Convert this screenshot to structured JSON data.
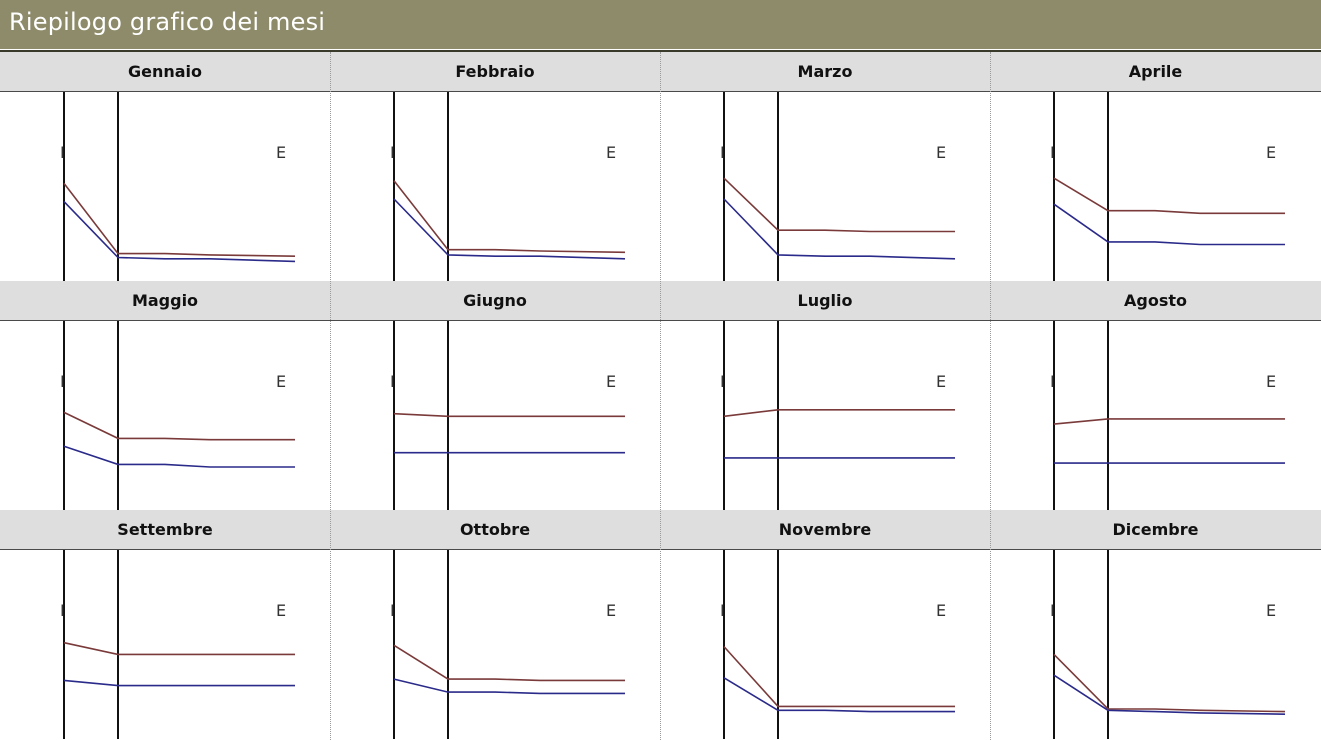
{
  "header": {
    "title": "Riepilogo grafico dei mesi"
  },
  "colors": {
    "header_bg": "#8e8b6a",
    "series_I": "#7a3a3a",
    "series_E": "#2a2a8a"
  },
  "axis_labels": {
    "left": "I",
    "right": "E"
  },
  "months": [
    "Gennaio",
    "Febbraio",
    "Marzo",
    "Aprile",
    "Maggio",
    "Giugno",
    "Luglio",
    "Agosto",
    "Settembre",
    "Ottobre",
    "Novembre",
    "Dicembre"
  ],
  "chart_data": [
    {
      "type": "line",
      "title": "Gennaio",
      "x": [
        0,
        1,
        2,
        3,
        4
      ],
      "series": [
        {
          "values": [
            62,
            8,
            8,
            7,
            6
          ]
        },
        {
          "values": [
            48,
            5,
            4,
            4,
            2
          ]
        }
      ]
    },
    {
      "type": "line",
      "title": "Febbraio",
      "x": [
        0,
        1,
        2,
        3,
        4
      ],
      "series": [
        {
          "values": [
            64,
            11,
            11,
            10,
            9
          ]
        },
        {
          "values": [
            50,
            7,
            6,
            6,
            4
          ]
        }
      ]
    },
    {
      "type": "line",
      "title": "Marzo",
      "x": [
        0,
        1,
        2,
        3,
        4
      ],
      "series": [
        {
          "values": [
            66,
            26,
            26,
            25,
            25
          ]
        },
        {
          "values": [
            50,
            7,
            6,
            6,
            4
          ]
        }
      ]
    },
    {
      "type": "line",
      "title": "Aprile",
      "x": [
        0,
        1,
        2,
        3,
        4
      ],
      "series": [
        {
          "values": [
            66,
            41,
            41,
            39,
            39
          ]
        },
        {
          "values": [
            46,
            17,
            17,
            15,
            15
          ]
        }
      ]
    },
    {
      "type": "line",
      "title": "Maggio",
      "x": [
        0,
        1,
        2,
        3,
        4
      ],
      "series": [
        {
          "values": [
            62,
            42,
            42,
            41,
            41
          ]
        },
        {
          "values": [
            36,
            22,
            22,
            20,
            20
          ]
        }
      ]
    },
    {
      "type": "line",
      "title": "Giugno",
      "x": [
        0,
        1,
        2,
        3,
        4
      ],
      "series": [
        {
          "values": [
            61,
            59,
            59,
            59,
            59
          ]
        },
        {
          "values": [
            31,
            31,
            31,
            31,
            31
          ]
        }
      ]
    },
    {
      "type": "line",
      "title": "Luglio",
      "x": [
        0,
        1,
        2,
        3,
        4
      ],
      "series": [
        {
          "values": [
            59,
            64,
            64,
            64,
            64
          ]
        },
        {
          "values": [
            27,
            27,
            27,
            27,
            27
          ]
        }
      ]
    },
    {
      "type": "line",
      "title": "Agosto",
      "x": [
        0,
        1,
        2,
        3,
        4
      ],
      "series": [
        {
          "values": [
            53,
            57,
            57,
            57,
            57
          ]
        },
        {
          "values": [
            23,
            23,
            23,
            23,
            23
          ]
        }
      ]
    },
    {
      "type": "line",
      "title": "Settembre",
      "x": [
        0,
        1,
        2,
        3,
        4
      ],
      "series": [
        {
          "values": [
            61,
            52,
            52,
            52,
            52
          ]
        },
        {
          "values": [
            32,
            28,
            28,
            28,
            28
          ]
        }
      ]
    },
    {
      "type": "line",
      "title": "Ottobre",
      "x": [
        0,
        1,
        2,
        3,
        4
      ],
      "series": [
        {
          "values": [
            59,
            33,
            33,
            32,
            32
          ]
        },
        {
          "values": [
            33,
            23,
            23,
            22,
            22
          ]
        }
      ]
    },
    {
      "type": "line",
      "title": "Novembre",
      "x": [
        0,
        1,
        2,
        3,
        4
      ],
      "series": [
        {
          "values": [
            58,
            12,
            12,
            12,
            12
          ]
        },
        {
          "values": [
            34,
            9,
            9,
            8,
            8
          ]
        }
      ]
    },
    {
      "type": "line",
      "title": "Dicembre",
      "x": [
        0,
        1,
        2,
        3,
        4
      ],
      "series": [
        {
          "values": [
            52,
            10,
            10,
            9,
            8
          ]
        },
        {
          "values": [
            36,
            9,
            8,
            7,
            6
          ]
        }
      ]
    }
  ]
}
